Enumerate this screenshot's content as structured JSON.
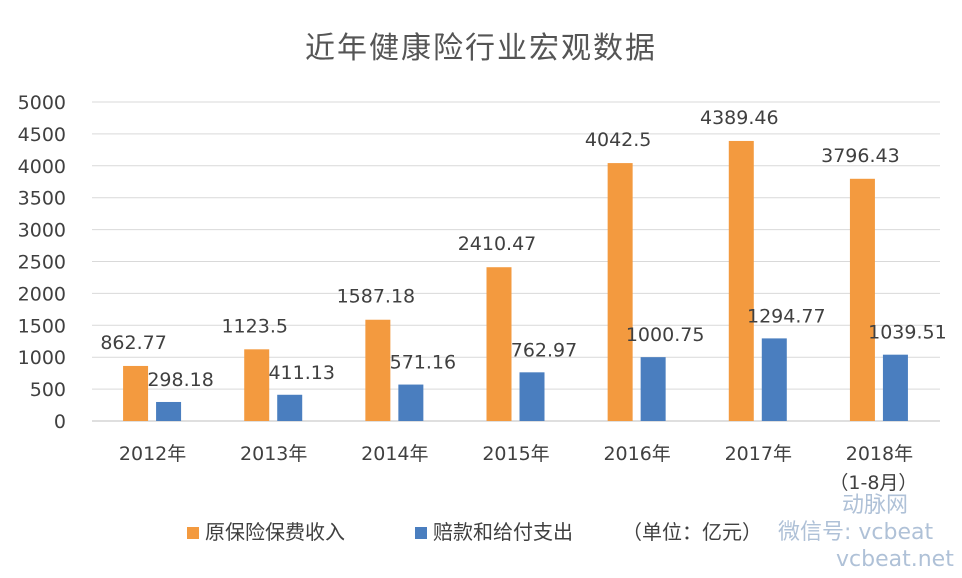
{
  "chart_data": {
    "type": "bar",
    "title": "近年健康险行业宏观数据",
    "categories": [
      "2012年",
      "2013年",
      "2014年",
      "2015年",
      "2016年",
      "2017年",
      "2018年"
    ],
    "category_sublabels": [
      "",
      "",
      "",
      "",
      "",
      "",
      "（1-8月）"
    ],
    "series": [
      {
        "name": "原保险保费收入",
        "color": "#f39a3f",
        "values": [
          862.77,
          1123.5,
          1587.18,
          2410.47,
          4042.5,
          4389.46,
          3796.43
        ],
        "labels": [
          "862.77",
          "1123.5",
          "1587.18",
          "2410.47",
          "4042.5",
          "4389.46",
          "3796.43"
        ]
      },
      {
        "name": "赔款和给付支出",
        "color": "#4a7ebf",
        "values": [
          298.18,
          411.13,
          571.16,
          762.97,
          1000.75,
          1294.77,
          1039.51
        ],
        "labels": [
          "298.18",
          "411.13",
          "571.16",
          "762.97",
          "1000.75",
          "1294.77",
          "1039.51"
        ]
      }
    ],
    "yticks": [
      "0",
      "500",
      "1000",
      "1500",
      "2000",
      "2500",
      "3000",
      "3500",
      "4000",
      "4500",
      "5000"
    ],
    "ylim": [
      0,
      5000
    ],
    "ystep": 500,
    "grid": true,
    "legend_position": "bottom",
    "unit_note": "（单位：亿元）",
    "watermark": "微信号: vcbeat",
    "watermark_brand": "动脉网",
    "watermark_domain": "vcbeat.net"
  }
}
